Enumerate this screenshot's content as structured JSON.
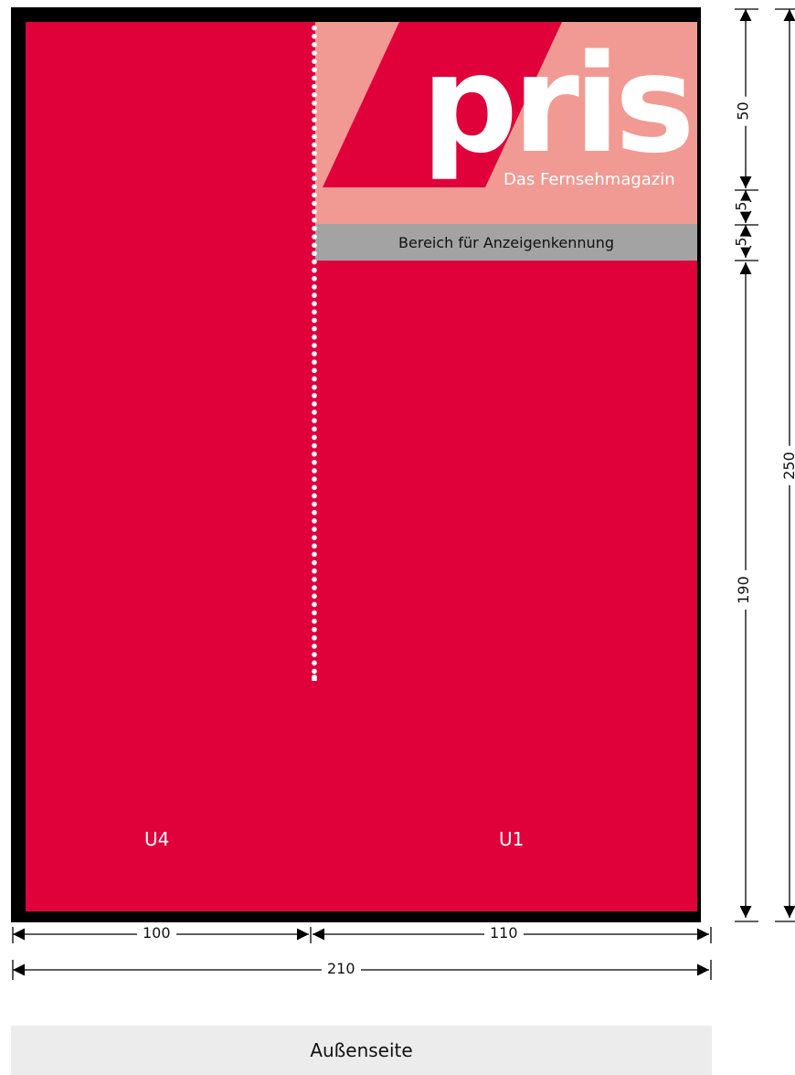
{
  "logo": {
    "word": "prisma",
    "tagline": "Das Fernsehmagazin"
  },
  "ad_bar_label": "Bereich für Anzeigenkennung",
  "pages": {
    "back": "U4",
    "front": "U1"
  },
  "dimensions": {
    "width_back": "100",
    "width_front": "110",
    "width_total": "210",
    "height_logo": "50",
    "height_gap_a": "5",
    "height_gap_b": "5",
    "height_body": "190",
    "height_total": "250"
  },
  "caption": "Außenseite",
  "colors": {
    "red": "#e0003a",
    "logo_pink": "#f19a93",
    "ad_bar_gray": "#a3a3a3",
    "frame": "#000000",
    "caption_bg": "#ececec"
  }
}
